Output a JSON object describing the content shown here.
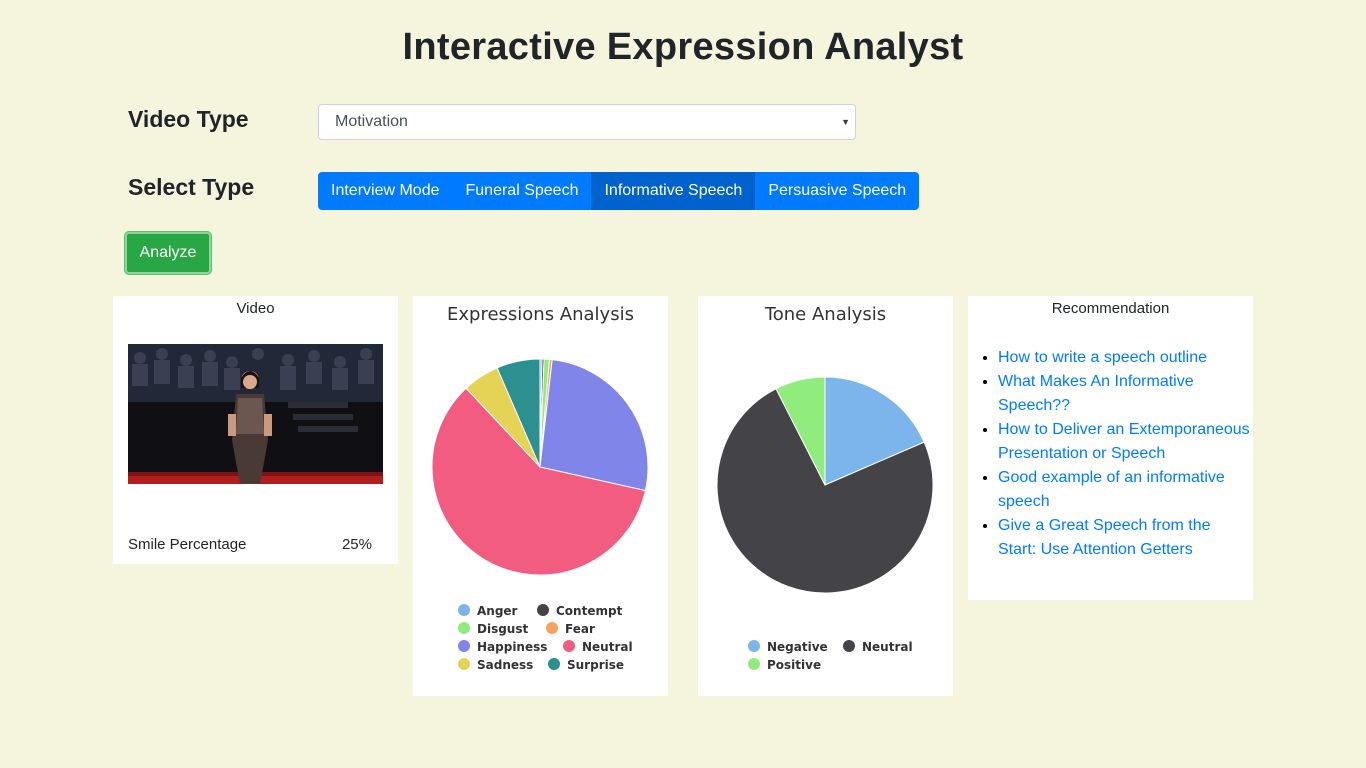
{
  "title": "Interactive Expression Analyst",
  "video_type": {
    "label": "Video Type",
    "selected": "Motivation"
  },
  "select_type": {
    "label": "Select Type",
    "options": [
      "Interview Mode",
      "Funeral Speech",
      "Informative Speech",
      "Persuasive Speech"
    ],
    "active": "Informative Speech"
  },
  "analyze_label": "Analyze",
  "video_card": {
    "title": "Video",
    "smile_label": "Smile Percentage",
    "smile_value": "25%"
  },
  "expressions_card": {
    "title": "Expressions Analysis"
  },
  "tone_card": {
    "title": "Tone Analysis"
  },
  "recommendation_card": {
    "title": "Recommendation",
    "links": [
      "How to write a speech outline",
      "What Makes An Informative Speech??",
      "How to Deliver an Extemporaneous Presentation or Speech",
      "Good example of an informative speech",
      "Give a Great Speech from the Start: Use Attention Getters"
    ]
  },
  "colors": {
    "background": "#f5f4dc",
    "primary": "#007bff",
    "primary_active": "#0062cc",
    "success": "#28a745"
  },
  "chart_data": [
    {
      "type": "pie",
      "title": "Expressions Analysis",
      "categories": [
        "Anger",
        "Contempt",
        "Disgust",
        "Fear",
        "Happiness",
        "Neutral",
        "Sadness",
        "Surprise"
      ],
      "values": [
        0.3,
        0.3,
        0.8,
        0.4,
        26.7,
        59.5,
        5.5,
        6.5
      ],
      "colors": [
        "#7cb5ec",
        "#434348",
        "#90ed7d",
        "#f7a35c",
        "#8085e9",
        "#f15c80",
        "#e4d354",
        "#2b908f"
      ],
      "legend": "bottom"
    },
    {
      "type": "pie",
      "title": "Tone Analysis",
      "categories": [
        "Negative",
        "Neutral",
        "Positive"
      ],
      "values": [
        18.5,
        74.0,
        7.5
      ],
      "colors": [
        "#7cb5ec",
        "#434348",
        "#90ed7d"
      ],
      "legend": "bottom"
    }
  ]
}
